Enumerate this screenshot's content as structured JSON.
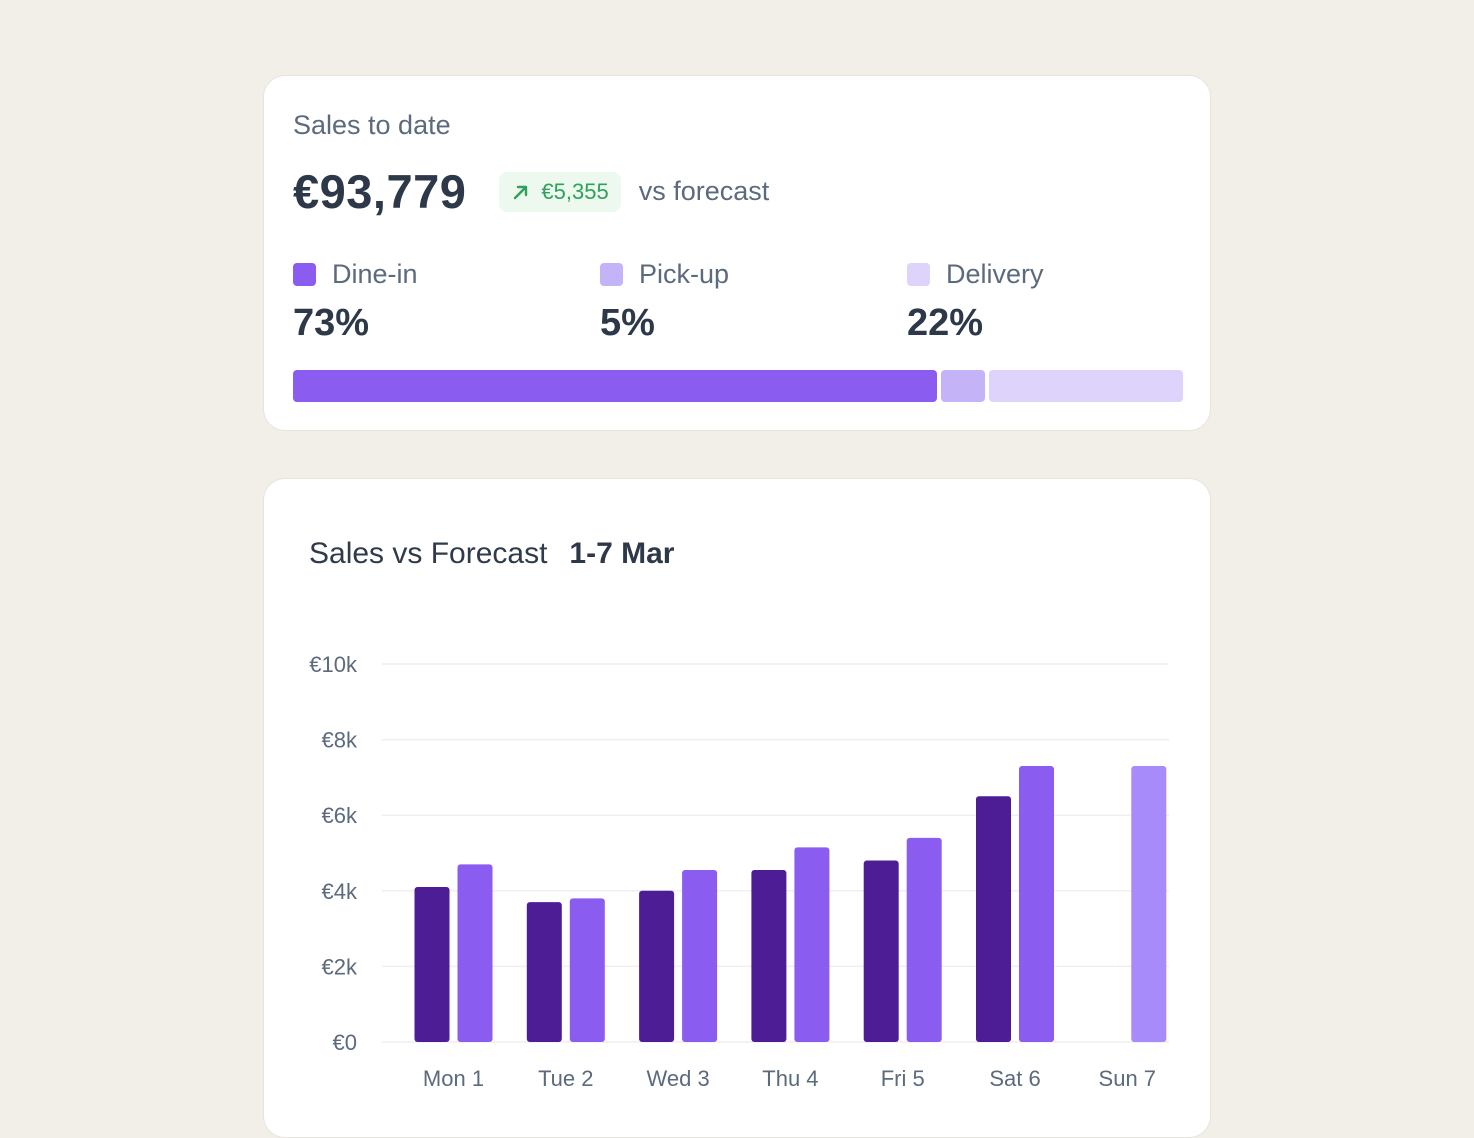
{
  "summary": {
    "label": "Sales to date",
    "total": "€93,779",
    "delta": "€5,355",
    "delta_suffix": "vs forecast",
    "delta_direction": "up",
    "breakdown": [
      {
        "label": "Dine-in",
        "percent_text": "73%",
        "share": 73,
        "color": "#8b5cf0"
      },
      {
        "label": "Pick-up",
        "percent_text": "5%",
        "share": 5,
        "color": "#c4b3f7"
      },
      {
        "label": "Delivery",
        "percent_text": "22%",
        "share": 22,
        "color": "#ddd3fb"
      }
    ]
  },
  "chart_card": {
    "title": "Sales vs Forecast",
    "range": "1-7 Mar"
  },
  "chart_data": {
    "type": "bar",
    "title": "Sales vs Forecast",
    "subtitle": "1-7 Mar",
    "categories": [
      "Mon 1",
      "Tue 2",
      "Wed 3",
      "Thu 4",
      "Fri 5",
      "Sat 6",
      "Sun 7"
    ],
    "yticks": [
      "€0",
      "€2k",
      "€4k",
      "€6k",
      "€8k",
      "€10k"
    ],
    "ylim": [
      0,
      10000
    ],
    "grid": true,
    "series": [
      {
        "color": "#4c1d95",
        "values": [
          4100,
          3700,
          4000,
          4550,
          4800,
          6500,
          null
        ]
      },
      {
        "color": "#8b5cf0",
        "values": [
          4700,
          3800,
          4550,
          5150,
          5400,
          7300,
          null
        ],
        "highlight_color": "#a78bfa",
        "highlight_values": [
          null,
          null,
          null,
          null,
          null,
          null,
          7300
        ]
      }
    ]
  }
}
